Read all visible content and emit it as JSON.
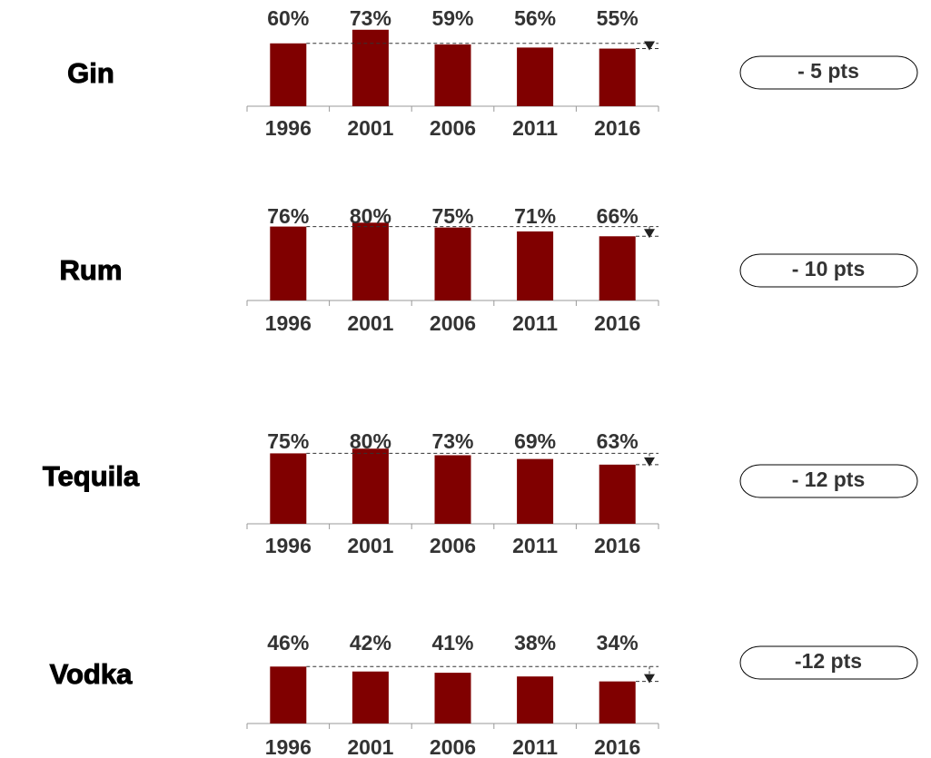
{
  "chart_data": [
    {
      "type": "bar",
      "title": "Gin",
      "categories": [
        "1996",
        "2001",
        "2006",
        "2011",
        "2016"
      ],
      "values": [
        60,
        73,
        59,
        56,
        55
      ],
      "value_labels": [
        "60%",
        "73%",
        "59%",
        "56%",
        "55%"
      ],
      "annotation": "- 5 pts",
      "color": "#800000",
      "ylim": [
        0,
        78
      ]
    },
    {
      "type": "bar",
      "title": "Rum",
      "categories": [
        "1996",
        "2001",
        "2006",
        "2011",
        "2016"
      ],
      "values": [
        76,
        80,
        75,
        71,
        66
      ],
      "value_labels": [
        "76%",
        "80%",
        "75%",
        "71%",
        "66%"
      ],
      "annotation": "- 10 pts",
      "color": "#800000",
      "ylim": [
        0,
        84
      ]
    },
    {
      "type": "bar",
      "title": "Tequila",
      "categories": [
        "1996",
        "2001",
        "2006",
        "2011",
        "2016"
      ],
      "values": [
        75,
        80,
        73,
        69,
        63
      ],
      "value_labels": [
        "75%",
        "80%",
        "73%",
        "69%",
        "63%"
      ],
      "annotation": "- 12 pts",
      "color": "#800000",
      "ylim": [
        0,
        87
      ]
    },
    {
      "type": "bar",
      "title": "Vodka",
      "categories": [
        "1996",
        "2001",
        "2006",
        "2011",
        "2016"
      ],
      "values": [
        46,
        42,
        41,
        38,
        34
      ],
      "value_labels": [
        "46%",
        "42%",
        "41%",
        "38%",
        "34%"
      ],
      "annotation": "-12 pts",
      "color": "#800000",
      "ylim": [
        0,
        66
      ]
    }
  ]
}
